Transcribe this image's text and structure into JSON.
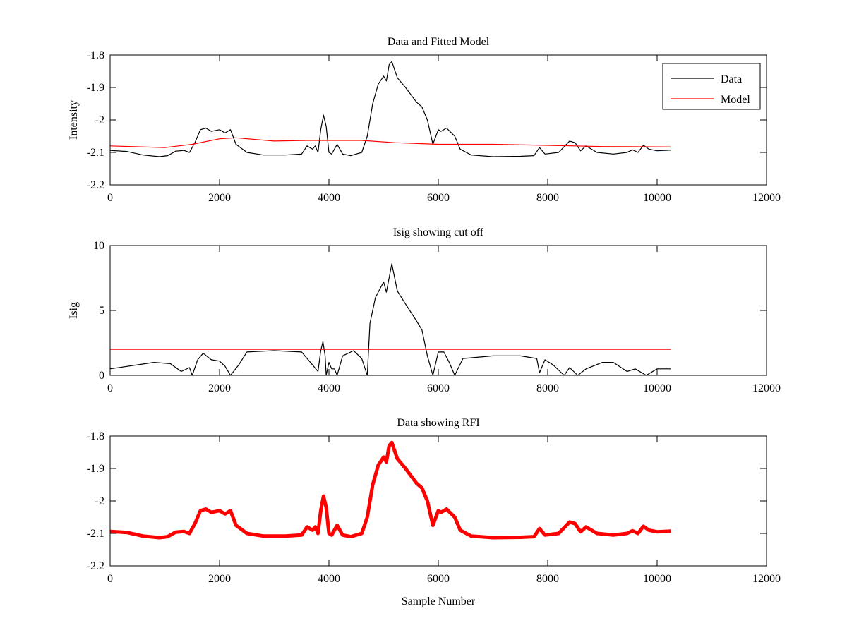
{
  "chart_data": [
    {
      "type": "line",
      "title": "Data and Fitted Model",
      "xlabel": "",
      "ylabel": "Intensity",
      "xlim": [
        0,
        12000
      ],
      "ylim": [
        -2.2,
        -1.8
      ],
      "xticks": [
        0,
        2000,
        4000,
        6000,
        8000,
        10000,
        12000
      ],
      "yticks": [
        -2.2,
        -2.1,
        -2,
        -1.9,
        -1.8
      ],
      "ytick_labels": [
        "-2.2",
        "-2.1",
        "-2",
        "-1.9",
        "-1.8"
      ],
      "grid": false,
      "legend": {
        "placement": "top-right",
        "entries": [
          "Data",
          "Model"
        ]
      },
      "series": [
        {
          "name": "Data",
          "color": "#000000",
          "x": [
            0,
            300,
            600,
            900,
            1050,
            1200,
            1350,
            1450,
            1550,
            1650,
            1750,
            1850,
            2000,
            2100,
            2200,
            2300,
            2500,
            2800,
            3200,
            3500,
            3600,
            3700,
            3750,
            3800,
            3850,
            3900,
            3950,
            4000,
            4050,
            4150,
            4200,
            4250,
            4400,
            4600,
            4700,
            4800,
            4900,
            5000,
            5050,
            5100,
            5150,
            5250,
            5400,
            5600,
            5700,
            5800,
            5900,
            6000,
            6050,
            6150,
            6300,
            6400,
            6600,
            7000,
            7500,
            7750,
            7850,
            7950,
            8200,
            8400,
            8500,
            8600,
            8700,
            8800,
            8900,
            9200,
            9450,
            9550,
            9650,
            9750,
            9850,
            10000,
            10250
          ],
          "y": [
            -2.094,
            -2.097,
            -2.108,
            -2.113,
            -2.11,
            -2.096,
            -2.094,
            -2.1,
            -2.07,
            -2.03,
            -2.025,
            -2.035,
            -2.03,
            -2.04,
            -2.03,
            -2.075,
            -2.1,
            -2.108,
            -2.108,
            -2.105,
            -2.08,
            -2.09,
            -2.08,
            -2.1,
            -2.03,
            -1.985,
            -2.02,
            -2.1,
            -2.105,
            -2.075,
            -2.09,
            -2.105,
            -2.11,
            -2.1,
            -2.05,
            -1.95,
            -1.89,
            -1.865,
            -1.88,
            -1.83,
            -1.82,
            -1.87,
            -1.9,
            -1.945,
            -1.96,
            -2.0,
            -2.075,
            -2.03,
            -2.035,
            -2.025,
            -2.05,
            -2.09,
            -2.108,
            -2.113,
            -2.112,
            -2.11,
            -2.085,
            -2.105,
            -2.1,
            -2.065,
            -2.07,
            -2.095,
            -2.08,
            -2.09,
            -2.1,
            -2.105,
            -2.1,
            -2.092,
            -2.1,
            -2.078,
            -2.09,
            -2.095,
            -2.093
          ]
        },
        {
          "name": "Model",
          "color": "#ff0000",
          "x": [
            0,
            1000,
            1500,
            2000,
            2300,
            3000,
            3600,
            4600,
            5200,
            6000,
            7000,
            8500,
            9000,
            10250
          ],
          "y": [
            -2.08,
            -2.085,
            -2.075,
            -2.058,
            -2.055,
            -2.065,
            -2.063,
            -2.063,
            -2.07,
            -2.075,
            -2.075,
            -2.08,
            -2.082,
            -2.083
          ]
        }
      ]
    },
    {
      "type": "line",
      "title": "Isig showing cut off",
      "xlabel": "",
      "ylabel": "Isig",
      "xlim": [
        0,
        12000
      ],
      "ylim": [
        0,
        10
      ],
      "xticks": [
        0,
        2000,
        4000,
        6000,
        8000,
        10000,
        12000
      ],
      "yticks": [
        0,
        5,
        10
      ],
      "ytick_labels": [
        "0",
        "5",
        "10"
      ],
      "grid": false,
      "series": [
        {
          "name": "Isig",
          "color": "#000000",
          "x": [
            0,
            800,
            1100,
            1300,
            1450,
            1500,
            1600,
            1700,
            1850,
            2000,
            2100,
            2200,
            2350,
            2500,
            3000,
            3500,
            3700,
            3800,
            3850,
            3890,
            3930,
            3950,
            4000,
            4050,
            4100,
            4150,
            4250,
            4450,
            4600,
            4700,
            4750,
            4850,
            5000,
            5050,
            5150,
            5250,
            5400,
            5600,
            5700,
            5800,
            5900,
            6000,
            6100,
            6200,
            6300,
            6450,
            7000,
            7500,
            7800,
            7850,
            7950,
            8100,
            8300,
            8400,
            8550,
            8700,
            9000,
            9200,
            9450,
            9600,
            9800,
            10000,
            10250
          ],
          "y": [
            0.5,
            1.0,
            0.9,
            0.3,
            0.6,
            0,
            1.2,
            1.7,
            1.2,
            1.1,
            0.7,
            0,
            0.8,
            1.8,
            1.9,
            1.8,
            0.8,
            0.3,
            1.9,
            2.6,
            1.5,
            0,
            1.0,
            0.5,
            0.5,
            0,
            1.5,
            1.9,
            1.3,
            0,
            4.0,
            6.0,
            7.2,
            6.4,
            8.6,
            6.5,
            5.5,
            4.2,
            3.5,
            1.5,
            0,
            1.8,
            1.8,
            1.0,
            0,
            1.3,
            1.5,
            1.5,
            1.3,
            0.2,
            1.2,
            0.8,
            0,
            0.6,
            0,
            0.5,
            1.0,
            1.0,
            0.3,
            0.5,
            0,
            0.5,
            0.5
          ]
        },
        {
          "name": "Cut off",
          "color": "#ff0000",
          "x": [
            0,
            10250
          ],
          "y": [
            2,
            2
          ]
        }
      ]
    },
    {
      "type": "line",
      "title": "Data showing RFI",
      "xlabel": "Sample Number",
      "ylabel": "",
      "xlim": [
        0,
        12000
      ],
      "ylim": [
        -2.2,
        -1.8
      ],
      "xticks": [
        0,
        2000,
        4000,
        6000,
        8000,
        10000,
        12000
      ],
      "yticks": [
        -2.2,
        -2.1,
        -2,
        -1.9,
        -1.8
      ],
      "ytick_labels": [
        "-2.2",
        "-2.1",
        "-2",
        "-1.9",
        "-1.8"
      ],
      "grid": false,
      "series": [
        {
          "name": "RFI",
          "color": "#ff0000",
          "same_as": "Data",
          "thick": true
        }
      ]
    }
  ]
}
